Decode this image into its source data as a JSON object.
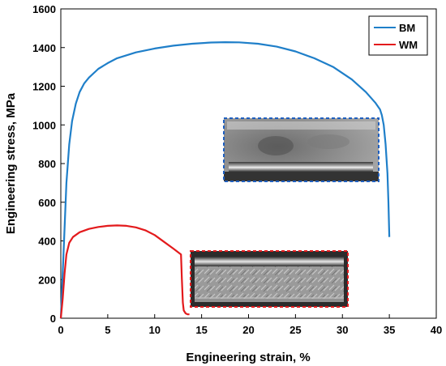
{
  "chart_data": {
    "type": "line",
    "xlabel": "Engineering strain, %",
    "ylabel": "Engineering stress, MPa",
    "xlim": [
      0,
      40
    ],
    "ylim": [
      0,
      1600
    ],
    "xticks": [
      0,
      5,
      10,
      15,
      20,
      25,
      30,
      35,
      40
    ],
    "yticks": [
      0,
      200,
      400,
      600,
      800,
      1000,
      1200,
      1400,
      1600
    ],
    "grid": false,
    "legend_position": "top-right",
    "series": [
      {
        "name": "BM",
        "color": "#1f7fc9",
        "x": [
          0,
          0.3,
          0.6,
          0.9,
          1.2,
          1.6,
          2.0,
          2.5,
          3.0,
          4.0,
          5.0,
          6.0,
          8.0,
          10.0,
          12.0,
          14.0,
          16.0,
          17.5,
          19.0,
          21.0,
          23.0,
          25.0,
          27.0,
          29.0,
          31.0,
          32.5,
          33.5,
          34.0,
          34.2,
          34.4,
          34.6,
          34.8,
          34.9,
          35.0
        ],
        "y": [
          0,
          350,
          700,
          900,
          1020,
          1110,
          1170,
          1215,
          1245,
          1290,
          1320,
          1345,
          1375,
          1395,
          1410,
          1420,
          1426,
          1428,
          1427,
          1420,
          1405,
          1380,
          1345,
          1300,
          1235,
          1170,
          1115,
          1080,
          1050,
          1000,
          900,
          750,
          600,
          420
        ]
      },
      {
        "name": "WM",
        "color": "#e31a1c",
        "x": [
          0,
          0.2,
          0.4,
          0.6,
          0.9,
          1.3,
          2.0,
          3.0,
          4.0,
          5.0,
          6.0,
          7.0,
          8.0,
          9.0,
          10.0,
          11.0,
          12.0,
          12.8,
          12.9,
          13.0,
          13.1,
          13.3,
          13.5,
          13.7
        ],
        "y": [
          0,
          100,
          230,
          330,
          390,
          420,
          445,
          462,
          472,
          478,
          480,
          478,
          470,
          455,
          430,
          395,
          360,
          330,
          200,
          80,
          40,
          25,
          20,
          20
        ]
      }
    ]
  },
  "insets": [
    {
      "name": "bm-fracture-micrograph",
      "border_color": "#1f5fbf"
    },
    {
      "name": "wm-fracture-micrograph",
      "border_color": "#e31a1c"
    }
  ]
}
